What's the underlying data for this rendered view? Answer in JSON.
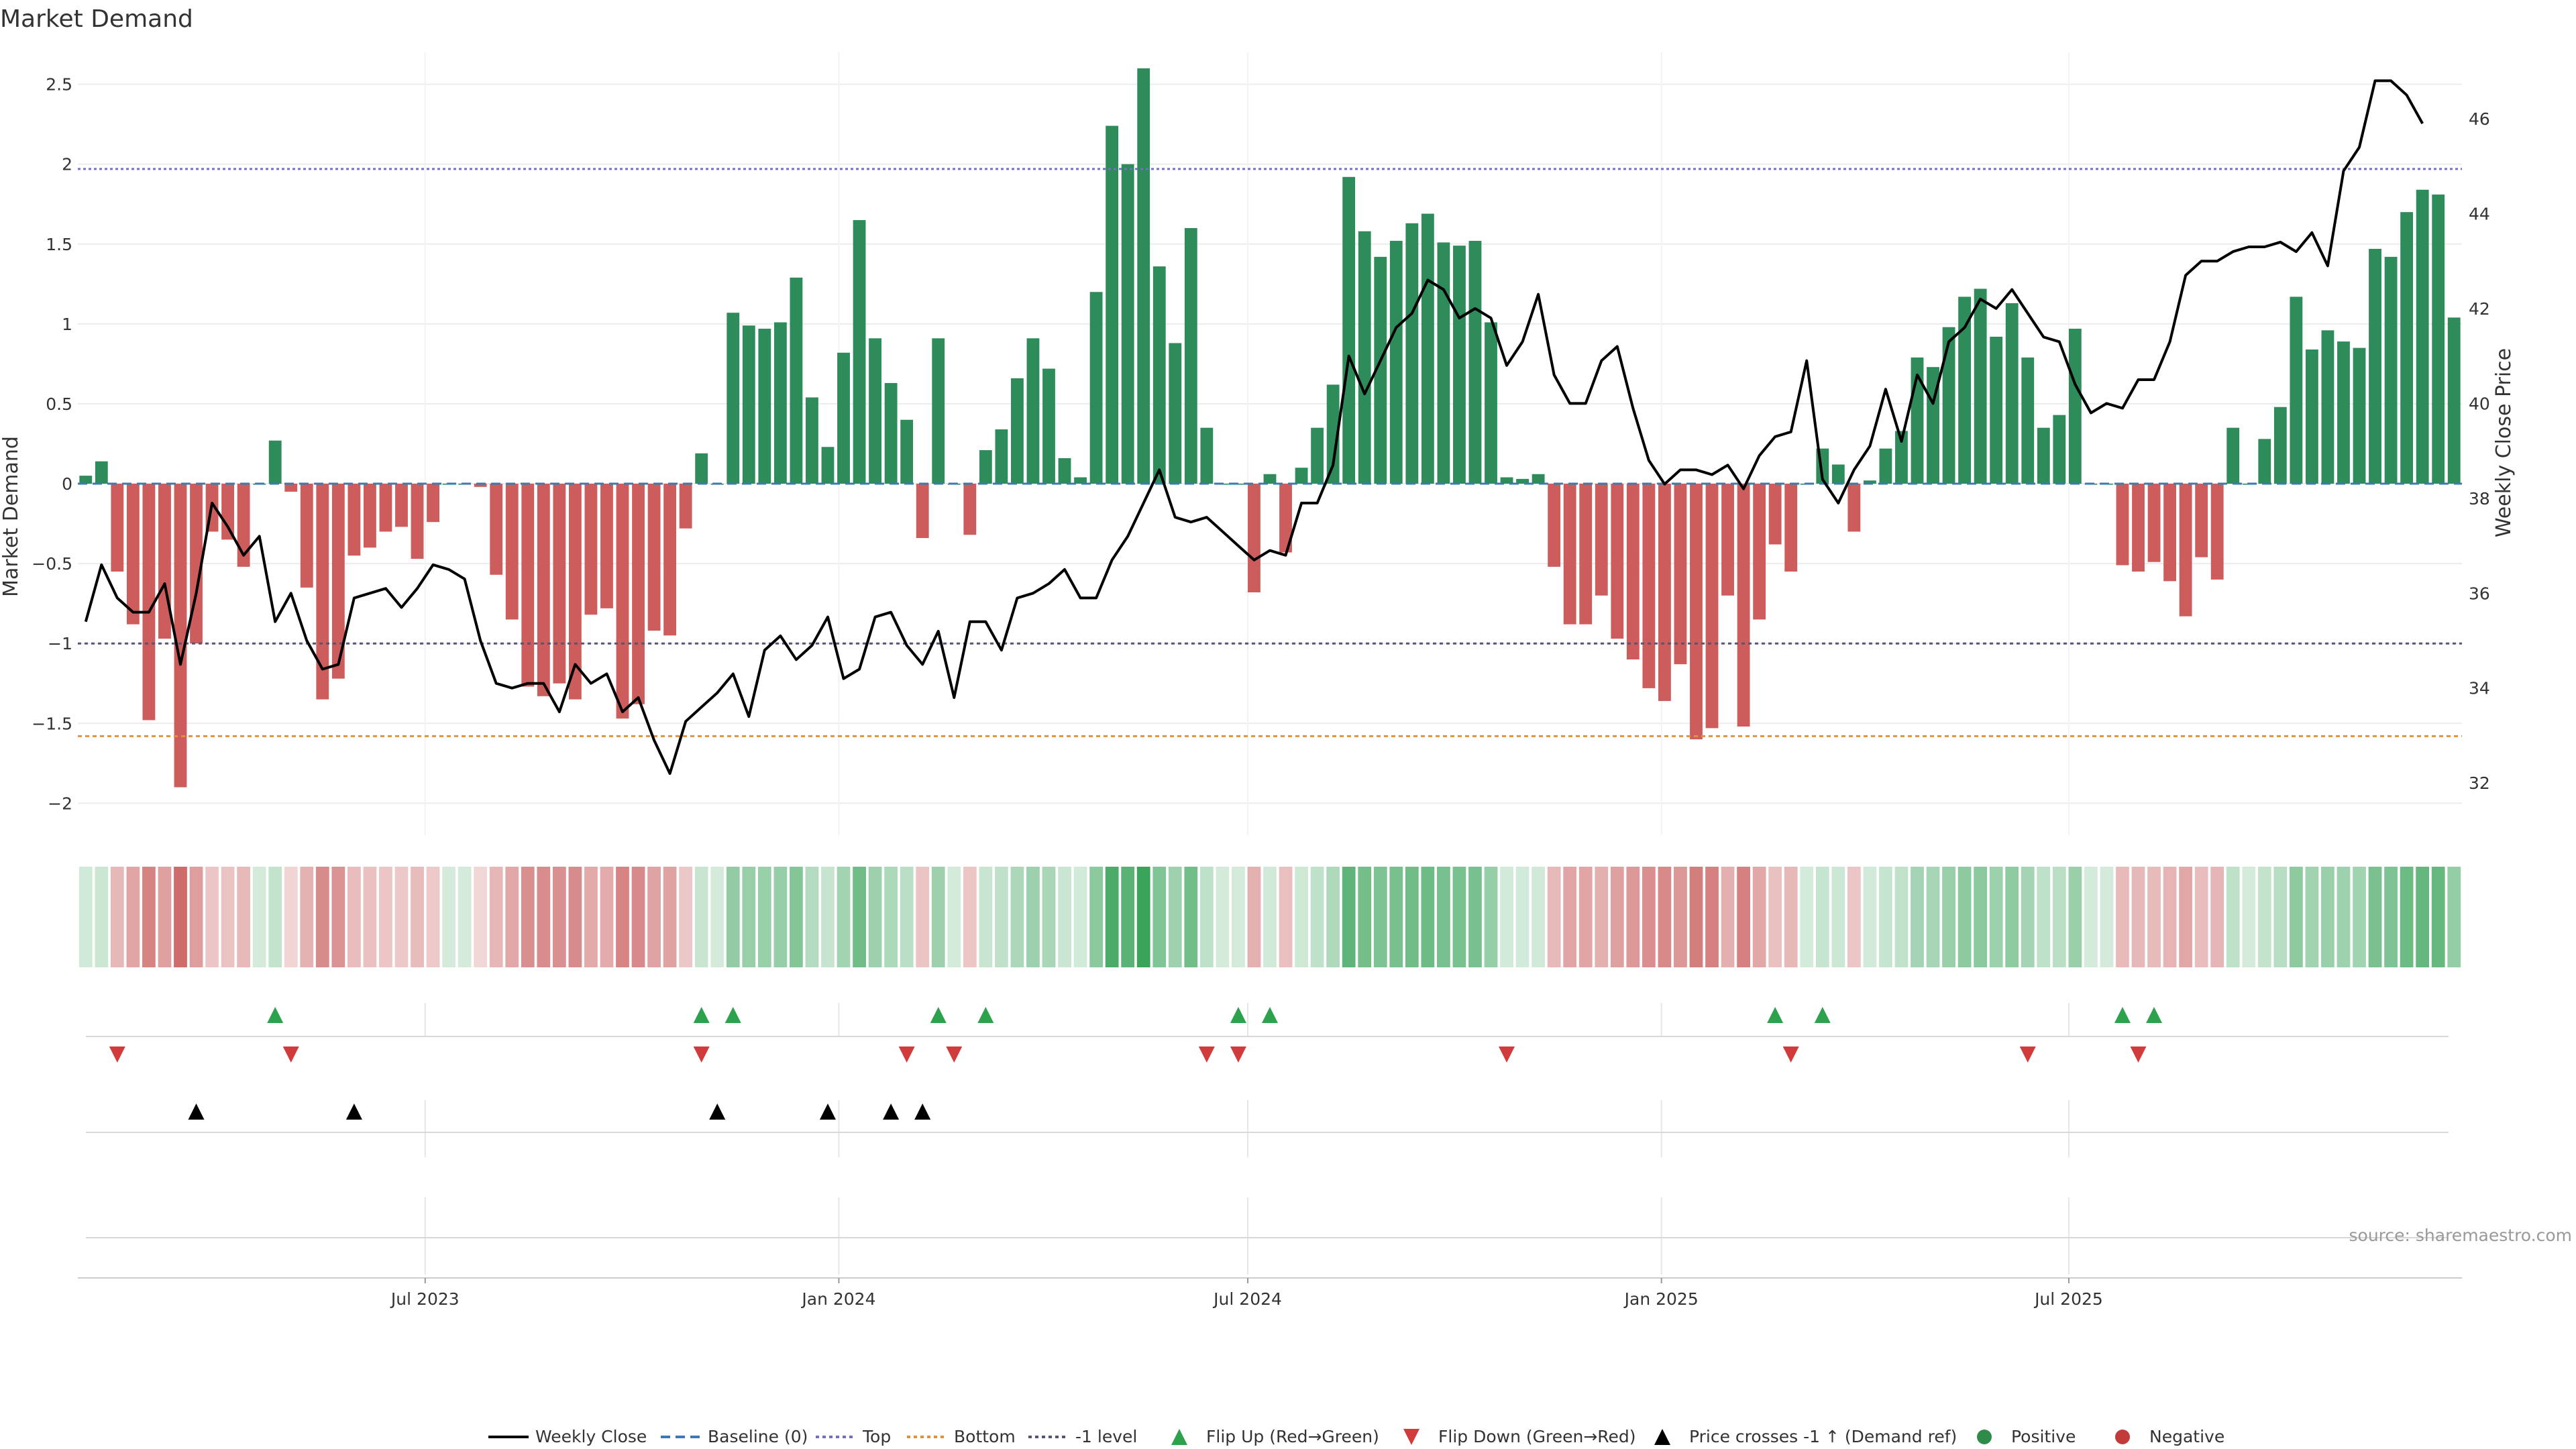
{
  "chart_data": {
    "type": "bar",
    "title": "Market Demand",
    "ylabel": "Market Demand",
    "y2label": "Weekly Close Price",
    "ylim": [
      -2.2,
      2.7
    ],
    "y2lim": [
      30.9,
      47.4
    ],
    "yticks": [
      "2.5",
      "2",
      "1.5",
      "1",
      "0.5",
      "0",
      "−0.5",
      "−1",
      "−1.5",
      "−2"
    ],
    "y2ticks": [
      "46",
      "44",
      "42",
      "40",
      "38",
      "36",
      "34",
      "32"
    ],
    "xticks": [
      "Jul 2023",
      "Jan 2024",
      "Jul 2024",
      "Jan 2025",
      "Jul 2025"
    ],
    "xtick_positions": [
      21.5,
      47.7,
      73.6,
      99.8,
      125.6
    ],
    "top_level": 1.97,
    "bottom_level": -1.58,
    "minus1_level": -1.0,
    "demand": [
      0.05,
      0.14,
      -0.55,
      -0.88,
      -1.48,
      -0.97,
      -1.9,
      -1.0,
      -0.3,
      -0.35,
      -0.52,
      0.0,
      0.27,
      -0.05,
      -0.65,
      -1.35,
      -1.22,
      -0.45,
      -0.4,
      -0.3,
      -0.27,
      -0.47,
      -0.24,
      0.0,
      0.0,
      -0.02,
      -0.57,
      -0.85,
      -1.27,
      -1.33,
      -1.25,
      -1.35,
      -0.82,
      -0.78,
      -1.47,
      -1.38,
      -0.92,
      -0.95,
      -0.28,
      0.19,
      0.0,
      1.07,
      0.99,
      0.97,
      1.01,
      1.29,
      0.54,
      0.23,
      0.82,
      1.65,
      0.91,
      0.63,
      0.4,
      -0.34,
      0.91,
      0.0,
      -0.32,
      0.21,
      0.34,
      0.66,
      0.91,
      0.72,
      0.16,
      0.04,
      1.2,
      2.24,
      2.0,
      2.6,
      1.36,
      0.88,
      1.6,
      0.35,
      0.0,
      0.0,
      -0.68,
      0.06,
      -0.43,
      0.1,
      0.35,
      0.62,
      1.92,
      1.58,
      1.42,
      1.52,
      1.63,
      1.69,
      1.51,
      1.49,
      1.52,
      1.01,
      0.04,
      0.03,
      0.06,
      -0.52,
      -0.88,
      -0.88,
      -0.7,
      -0.97,
      -1.1,
      -1.28,
      -1.36,
      -1.13,
      -1.6,
      -1.53,
      -0.7,
      -1.52,
      -0.85,
      -0.38,
      -0.55,
      0.0,
      0.22,
      0.12,
      -0.3,
      0.02,
      0.22,
      0.33,
      0.79,
      0.73,
      0.98,
      1.17,
      1.22,
      0.92,
      1.13,
      0.79,
      0.35,
      0.43,
      0.97,
      0.0,
      0.0,
      -0.51,
      -0.55,
      -0.49,
      -0.61,
      -0.83,
      -0.46,
      -0.6,
      0.35,
      0.0,
      0.28,
      0.48,
      1.17,
      0.84,
      0.96,
      0.89,
      0.85,
      1.47,
      1.42,
      1.7,
      1.84,
      1.81,
      1.04
    ],
    "close": [
      35.4,
      36.6,
      35.9,
      35.6,
      35.6,
      36.2,
      34.5,
      36.0,
      37.9,
      37.4,
      36.8,
      37.2,
      35.4,
      36.0,
      35.0,
      34.4,
      34.5,
      35.9,
      36.0,
      36.1,
      35.7,
      36.1,
      36.6,
      36.5,
      36.3,
      35.0,
      34.1,
      34.0,
      34.1,
      34.1,
      33.5,
      34.5,
      34.1,
      34.3,
      33.5,
      33.8,
      32.9,
      32.2,
      33.3,
      33.6,
      33.9,
      34.3,
      33.4,
      34.8,
      35.1,
      34.6,
      34.9,
      35.5,
      34.2,
      34.4,
      35.5,
      35.6,
      34.9,
      34.5,
      35.2,
      33.8,
      35.4,
      35.4,
      34.8,
      35.9,
      36.0,
      36.2,
      36.5,
      35.9,
      35.9,
      36.7,
      37.2,
      37.9,
      38.6,
      37.6,
      37.5,
      37.6,
      37.3,
      37.0,
      36.7,
      36.9,
      36.8,
      37.9,
      37.9,
      38.7,
      41.0,
      40.2,
      40.9,
      41.6,
      41.9,
      42.6,
      42.4,
      41.8,
      42.0,
      41.8,
      40.8,
      41.3,
      42.3,
      40.6,
      40.0,
      40.0,
      40.9,
      41.2,
      39.9,
      38.8,
      38.3,
      38.6,
      38.6,
      38.5,
      38.7,
      38.2,
      38.9,
      39.3,
      39.4,
      40.9,
      38.4,
      37.9,
      38.6,
      39.1,
      40.3,
      39.2,
      40.6,
      40.0,
      41.3,
      41.6,
      42.2,
      42.0,
      42.4,
      41.9,
      41.4,
      41.3,
      40.4,
      39.8,
      40.0,
      39.9,
      40.5,
      40.5,
      41.3,
      42.7,
      43.0,
      43.0,
      43.2,
      43.3,
      43.3,
      43.4,
      43.2,
      43.6,
      42.9,
      44.9,
      45.4,
      46.8,
      46.8,
      46.5,
      45.9
    ],
    "flip_up_weeks": [
      12,
      39,
      41,
      54,
      57,
      73,
      75,
      107,
      110,
      129,
      131
    ],
    "flip_down_weeks": [
      2,
      13,
      39,
      52,
      55,
      71,
      73,
      90,
      108,
      123,
      130
    ],
    "cross_up_weeks": [
      7,
      17,
      40,
      47,
      51,
      53
    ],
    "legend": [
      {
        "label": "Weekly Close",
        "kind": "line",
        "color": "#000000"
      },
      {
        "label": "Baseline (0)",
        "kind": "dash",
        "color": "#3a7ab8"
      },
      {
        "label": "Top",
        "kind": "dot",
        "color": "#7272c0"
      },
      {
        "label": "Bottom",
        "kind": "dot",
        "color": "#e69138"
      },
      {
        "label": "-1 level",
        "kind": "dot",
        "color": "#555577"
      },
      {
        "label": "Flip Up (Red→Green)",
        "kind": "tri-up",
        "color": "#2ca24c"
      },
      {
        "label": "Flip Down (Green→Red)",
        "kind": "tri-down",
        "color": "#d13b3b"
      },
      {
        "label": "Price crosses -1 ↑ (Demand ref)",
        "kind": "tri-up",
        "color": "#000000"
      },
      {
        "label": "Positive",
        "kind": "dot-marker",
        "color": "#2e8b4a"
      },
      {
        "label": "Negative",
        "kind": "dot-marker",
        "color": "#c23a3a"
      }
    ]
  },
  "source_text": "source: sharemaestro.com",
  "colors": {
    "positive": "#2e8b5a",
    "negative": "#cd5c5c",
    "price": "#000000",
    "baseline": "#3a7ab8",
    "top": "#7272c0",
    "bottom": "#e69138",
    "minus1": "#555577",
    "flip_up": "#2ca24c",
    "flip_down": "#d13b3b",
    "cross": "#000000"
  }
}
